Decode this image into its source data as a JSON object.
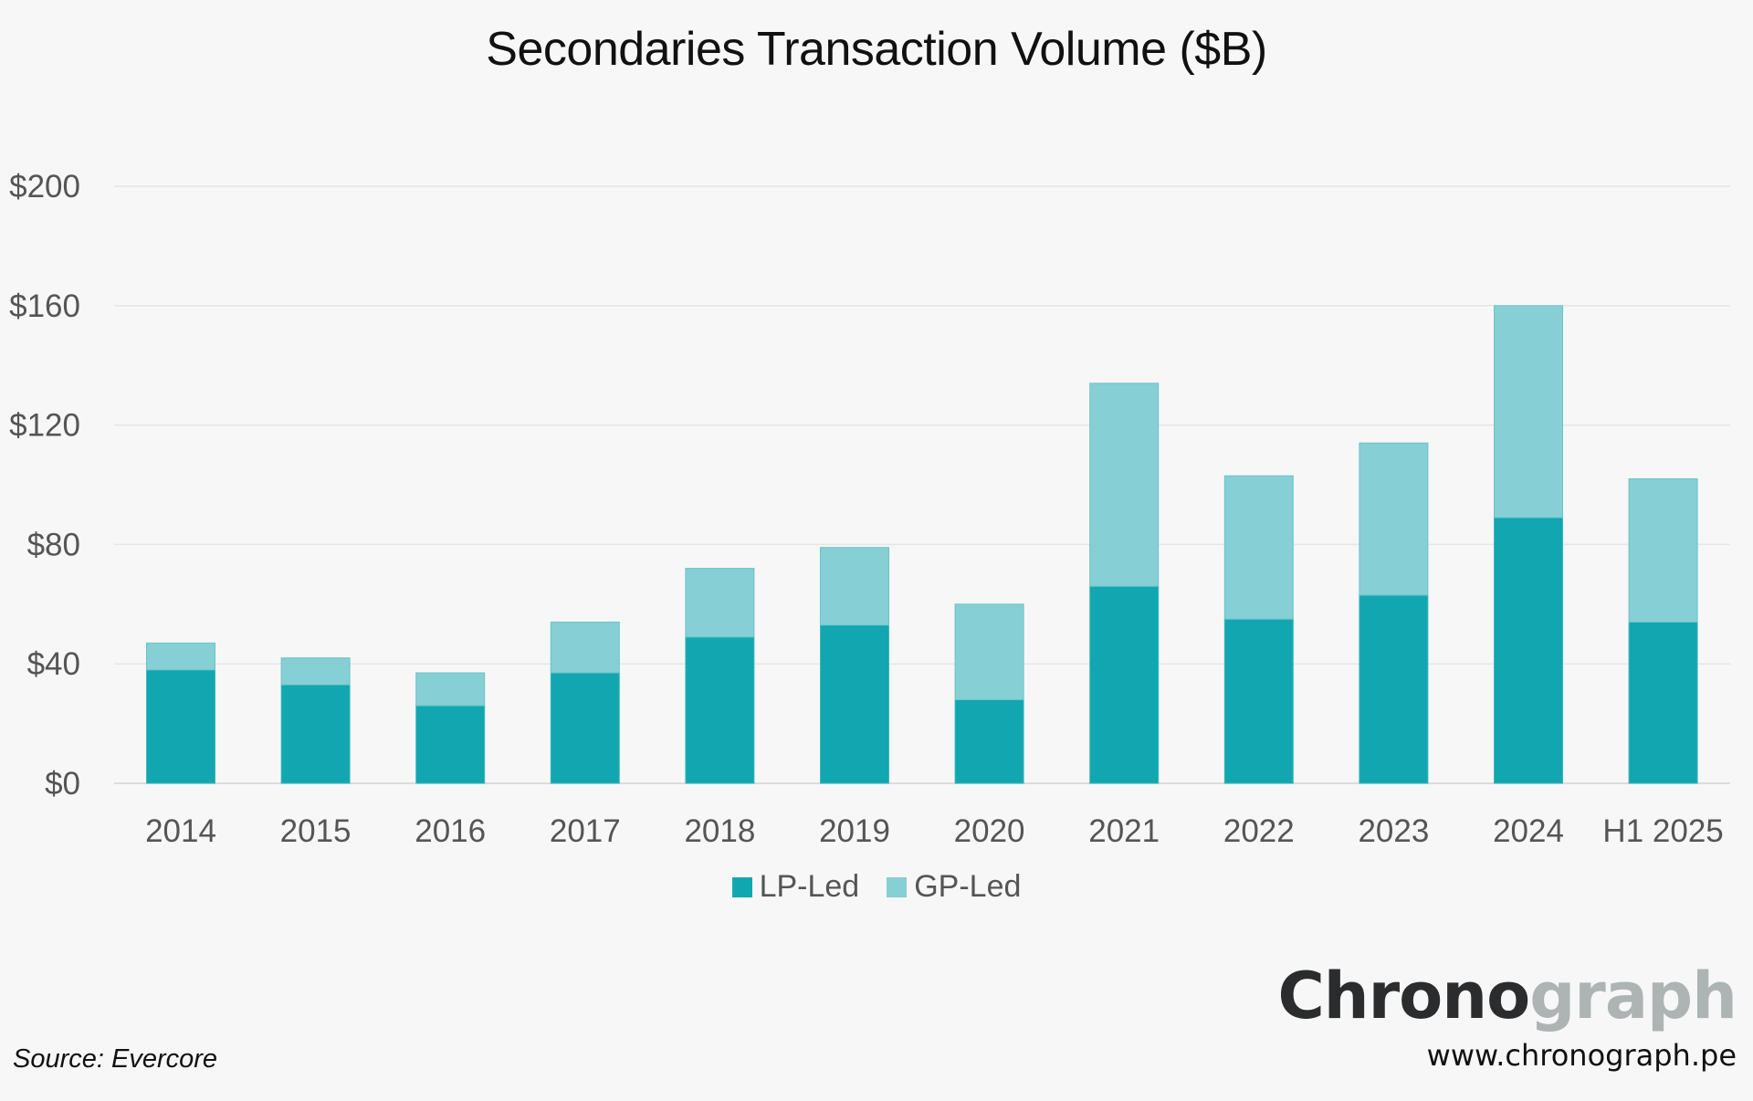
{
  "chart_data": {
    "type": "bar",
    "stacked": true,
    "title": "Secondaries Transaction Volume ($B)",
    "xlabel": "",
    "ylabel": "",
    "ylim": [
      0,
      200
    ],
    "yticks": [
      0,
      40,
      80,
      120,
      160,
      200
    ],
    "ytick_labels": [
      "$0",
      "$40",
      "$80",
      "$120",
      "$160",
      "$200"
    ],
    "grid": true,
    "legend_position": "bottom-center",
    "categories": [
      "2014",
      "2015",
      "2016",
      "2017",
      "2018",
      "2019",
      "2020",
      "2021",
      "2022",
      "2023",
      "2024",
      "H1 2025"
    ],
    "series": [
      {
        "name": "LP-Led",
        "color": "#12a6b0",
        "values": [
          38,
          33,
          26,
          37,
          49,
          53,
          28,
          66,
          55,
          63,
          89,
          54
        ]
      },
      {
        "name": "GP-Led",
        "color": "#86cfd4",
        "values": [
          9,
          9,
          11,
          17,
          23,
          26,
          32,
          68,
          48,
          51,
          71,
          48
        ]
      }
    ]
  },
  "footer": {
    "source": "Source: Evercore",
    "brand_dark": "Chrono",
    "brand_light": "graph",
    "url": "www.chronograph.pe"
  }
}
